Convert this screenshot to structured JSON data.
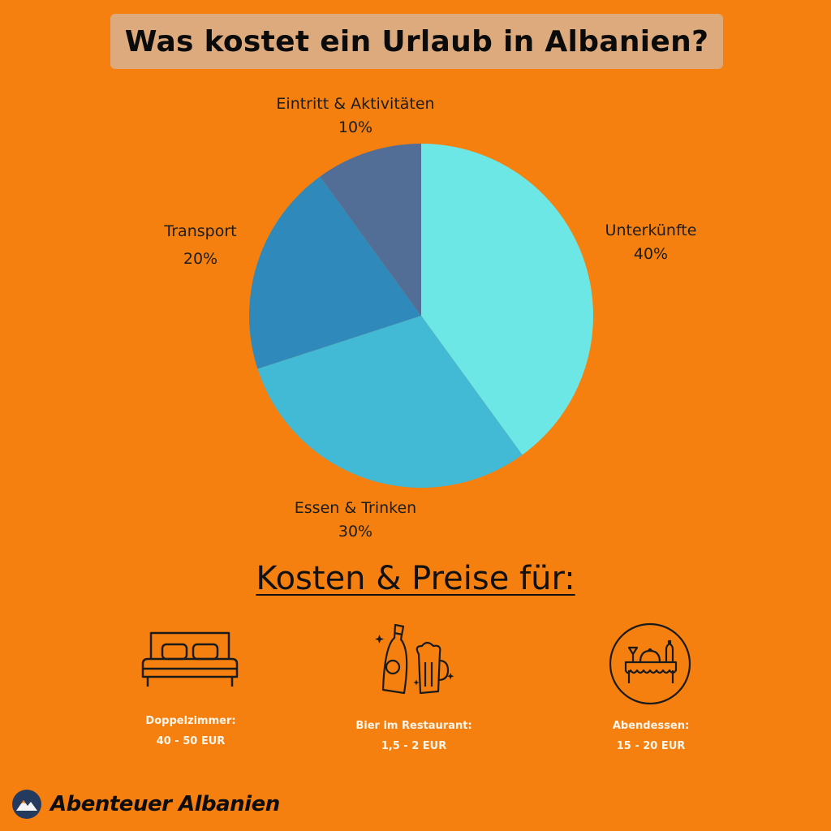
{
  "header": {
    "title": "Was kostet ein Urlaub in Albanien?"
  },
  "chart_data": {
    "type": "pie",
    "title": "Was kostet ein Urlaub in Albanien?",
    "slices": [
      {
        "label": "Unterkünfte",
        "value": 40,
        "display": "40%",
        "color": "#6de6e6"
      },
      {
        "label": "Essen & Trinken",
        "value": 30,
        "display": "30%",
        "color": "#42b9d5"
      },
      {
        "label": "Transport",
        "value": 20,
        "display": "20%",
        "color": "#2f8abb"
      },
      {
        "label": "Eintritt & Aktivitäten",
        "value": 10,
        "display": "10%",
        "color": "#526d96"
      }
    ]
  },
  "costs": {
    "heading": "Kosten & Preise für:",
    "items": [
      {
        "icon": "bed-icon",
        "label": "Doppelzimmer:",
        "price": "40 - 50 EUR"
      },
      {
        "icon": "beer-icon",
        "label": "Bier im Restaurant:",
        "price": "1,5 - 2  EUR"
      },
      {
        "icon": "dinner-icon",
        "label": "Abendessen:",
        "price": "15 - 20 EUR"
      }
    ]
  },
  "brand": {
    "name": "Abenteuer Albanien",
    "icon": "mountain-logo-icon"
  }
}
